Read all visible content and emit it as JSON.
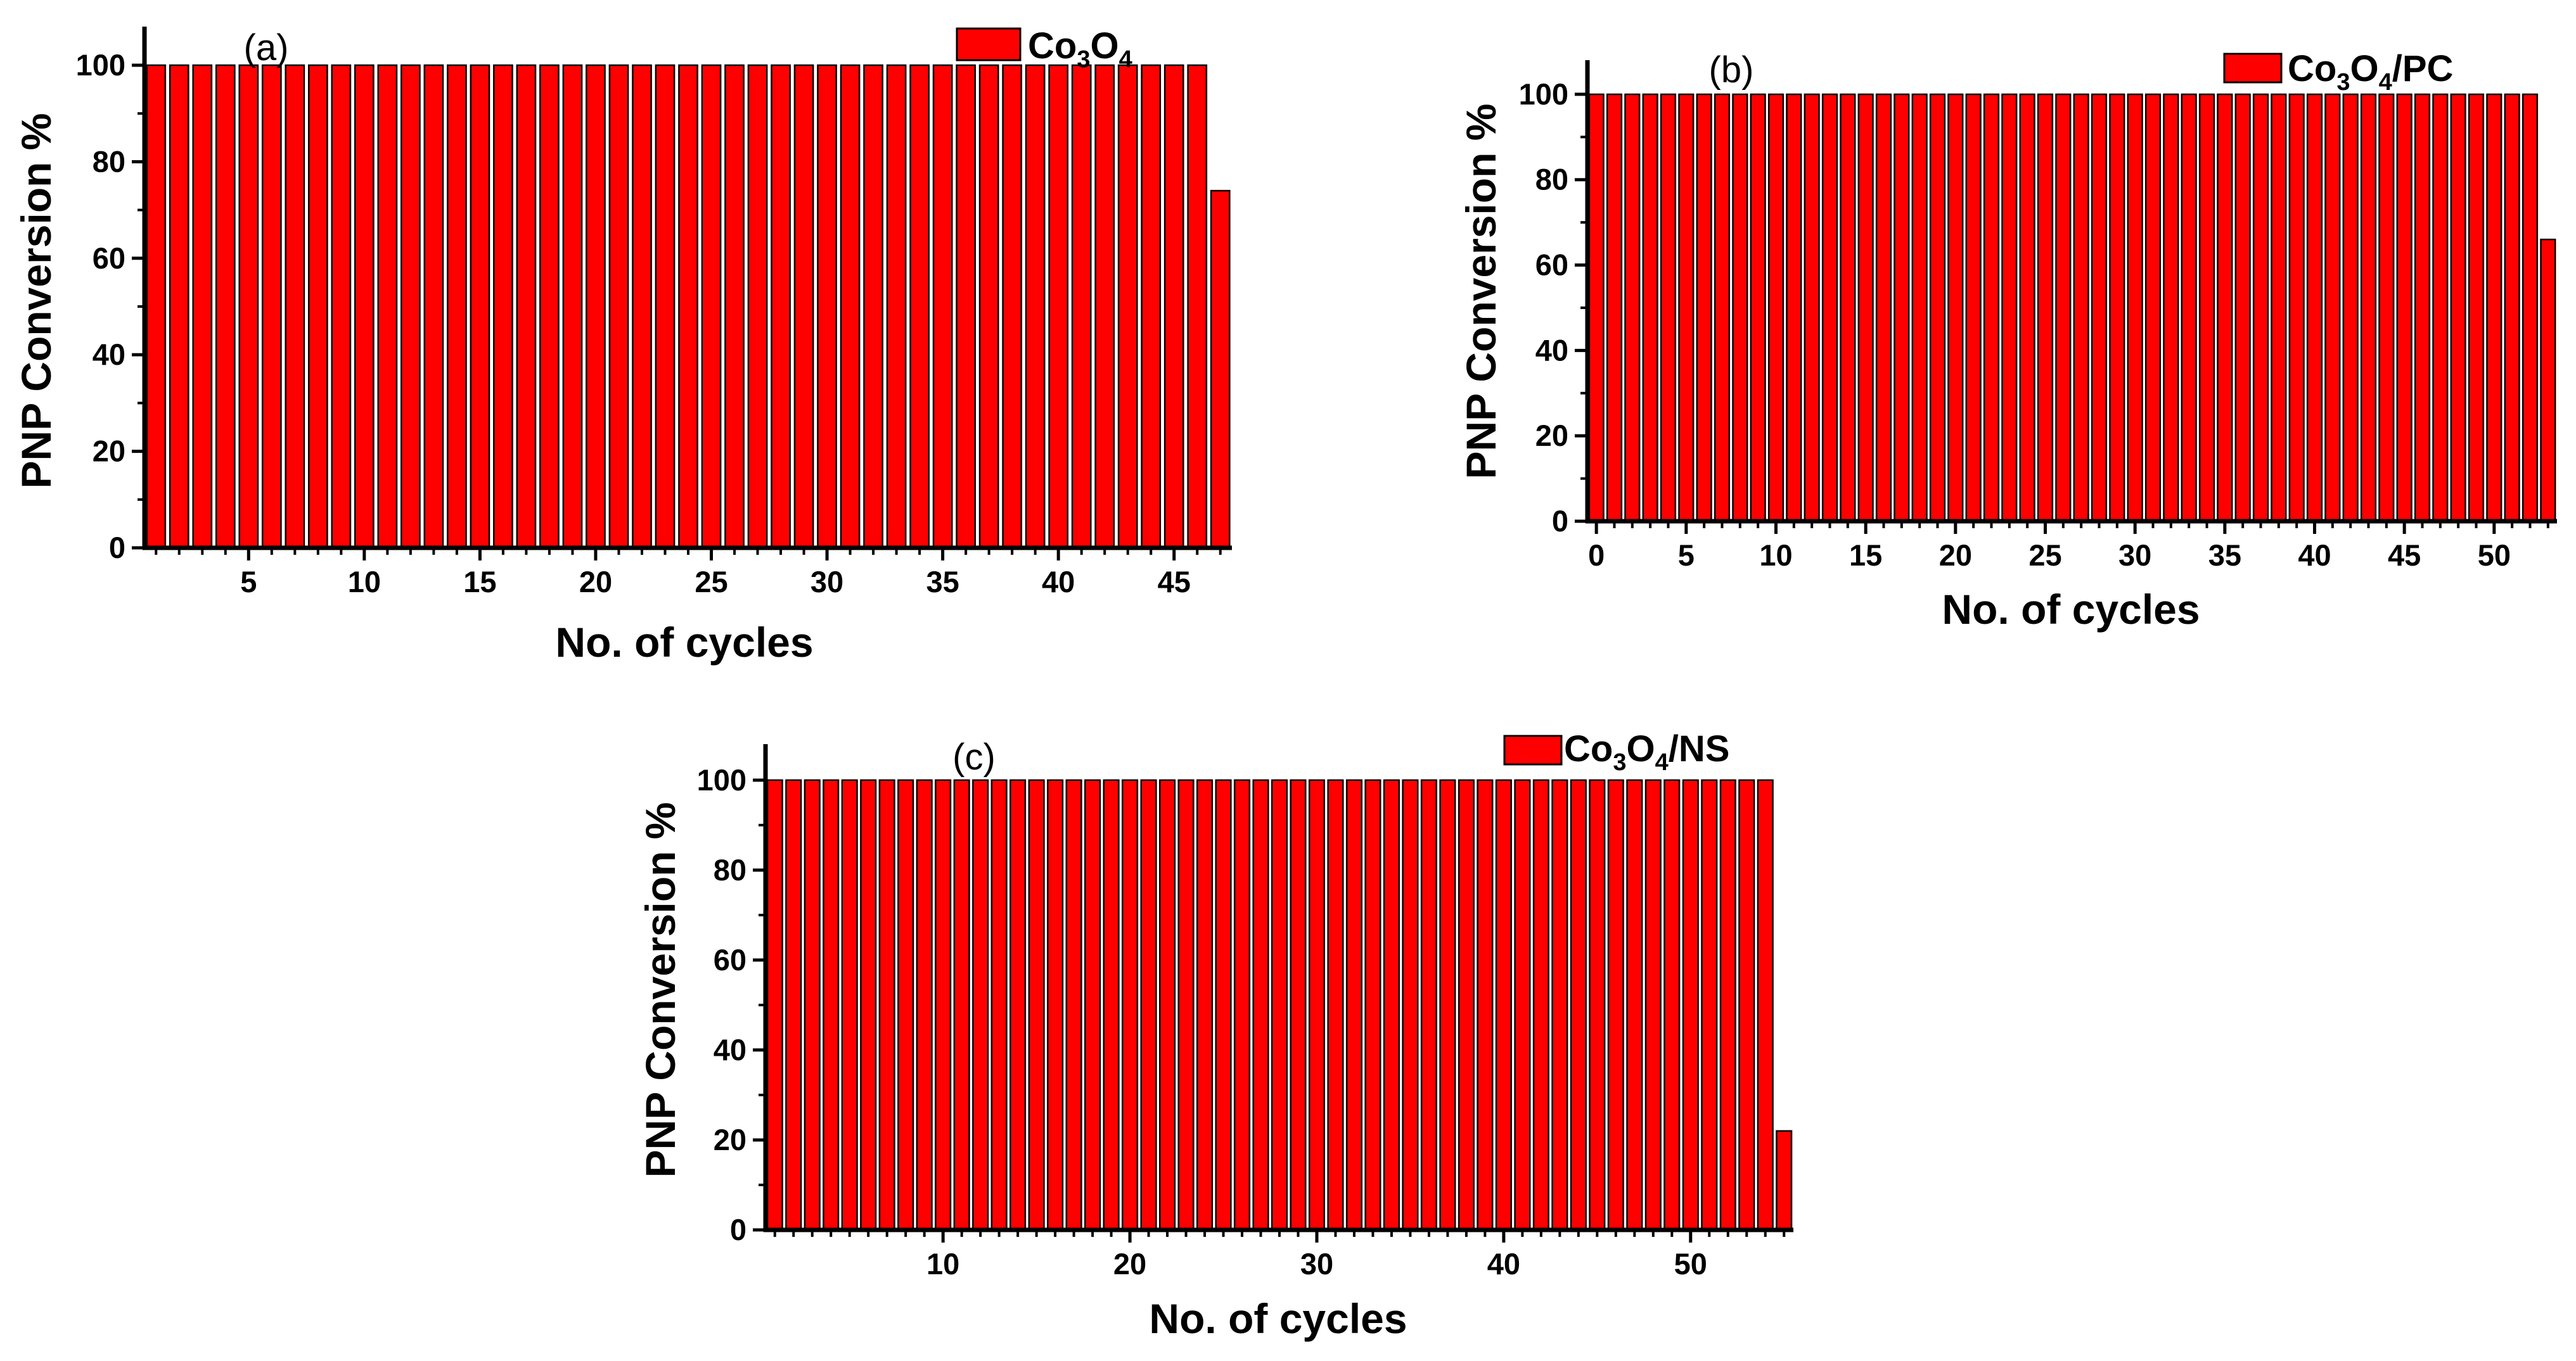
{
  "chart_data": [
    {
      "id": "a",
      "type": "bar",
      "panel_label": "(a)",
      "legend": {
        "base": "Co",
        "sub1": "3",
        "mid": "O",
        "sub2": "4",
        "suffix": ""
      },
      "xlabel": "No. of cycles",
      "ylabel": "PNP Conversion %",
      "xlim": [
        0.5,
        47.5
      ],
      "ylim": [
        0,
        108
      ],
      "xticks": [
        5,
        10,
        15,
        20,
        25,
        30,
        35,
        40,
        45
      ],
      "yticks": [
        0,
        20,
        40,
        60,
        80,
        100
      ],
      "x": [
        1,
        2,
        3,
        4,
        5,
        6,
        7,
        8,
        9,
        10,
        11,
        12,
        13,
        14,
        15,
        16,
        17,
        18,
        19,
        20,
        21,
        22,
        23,
        24,
        25,
        26,
        27,
        28,
        29,
        30,
        31,
        32,
        33,
        34,
        35,
        36,
        37,
        38,
        39,
        40,
        41,
        42,
        43,
        44,
        45,
        46,
        47
      ],
      "values": [
        100,
        100,
        100,
        100,
        100,
        100,
        100,
        100,
        100,
        100,
        100,
        100,
        100,
        100,
        100,
        100,
        100,
        100,
        100,
        100,
        100,
        100,
        100,
        100,
        100,
        100,
        100,
        100,
        100,
        100,
        100,
        100,
        100,
        100,
        100,
        100,
        100,
        100,
        100,
        100,
        100,
        100,
        100,
        100,
        100,
        100,
        74
      ],
      "bar_color": "#ff0000"
    },
    {
      "id": "b",
      "type": "bar",
      "panel_label": "(b)",
      "legend": {
        "base": "Co",
        "sub1": "3",
        "mid": "O",
        "sub2": "4",
        "suffix": "/PC"
      },
      "xlabel": "No. of cycles",
      "ylabel": "PNP Conversion %",
      "xlim": [
        -0.5,
        53.5
      ],
      "ylim": [
        0,
        108
      ],
      "xticks": [
        0,
        5,
        10,
        15,
        20,
        25,
        30,
        35,
        40,
        45,
        50
      ],
      "yticks": [
        0,
        20,
        40,
        60,
        80,
        100
      ],
      "x": [
        0,
        1,
        2,
        3,
        4,
        5,
        6,
        7,
        8,
        9,
        10,
        11,
        12,
        13,
        14,
        15,
        16,
        17,
        18,
        19,
        20,
        21,
        22,
        23,
        24,
        25,
        26,
        27,
        28,
        29,
        30,
        31,
        32,
        33,
        34,
        35,
        36,
        37,
        38,
        39,
        40,
        41,
        42,
        43,
        44,
        45,
        46,
        47,
        48,
        49,
        50,
        51,
        52,
        53
      ],
      "values": [
        100,
        100,
        100,
        100,
        100,
        100,
        100,
        100,
        100,
        100,
        100,
        100,
        100,
        100,
        100,
        100,
        100,
        100,
        100,
        100,
        100,
        100,
        100,
        100,
        100,
        100,
        100,
        100,
        100,
        100,
        100,
        100,
        100,
        100,
        100,
        100,
        100,
        100,
        100,
        100,
        100,
        100,
        100,
        100,
        100,
        100,
        100,
        100,
        100,
        100,
        100,
        100,
        100,
        66
      ],
      "bar_color": "#ff0000"
    },
    {
      "id": "c",
      "type": "bar",
      "panel_label": "(c)",
      "legend": {
        "base": "Co",
        "sub1": "3",
        "mid": "O",
        "sub2": "4",
        "suffix": "/NS"
      },
      "xlabel": "No. of cycles",
      "ylabel": "PNP Conversion %",
      "xlim": [
        0.5,
        55.5
      ],
      "ylim": [
        0,
        108
      ],
      "xticks": [
        10,
        20,
        30,
        40,
        50
      ],
      "yticks": [
        0,
        20,
        40,
        60,
        80,
        100
      ],
      "x": [
        1,
        2,
        3,
        4,
        5,
        6,
        7,
        8,
        9,
        10,
        11,
        12,
        13,
        14,
        15,
        16,
        17,
        18,
        19,
        20,
        21,
        22,
        23,
        24,
        25,
        26,
        27,
        28,
        29,
        30,
        31,
        32,
        33,
        34,
        35,
        36,
        37,
        38,
        39,
        40,
        41,
        42,
        43,
        44,
        45,
        46,
        47,
        48,
        49,
        50,
        51,
        52,
        53,
        54,
        55
      ],
      "values": [
        100,
        100,
        100,
        100,
        100,
        100,
        100,
        100,
        100,
        100,
        100,
        100,
        100,
        100,
        100,
        100,
        100,
        100,
        100,
        100,
        100,
        100,
        100,
        100,
        100,
        100,
        100,
        100,
        100,
        100,
        100,
        100,
        100,
        100,
        100,
        100,
        100,
        100,
        100,
        100,
        100,
        100,
        100,
        100,
        100,
        100,
        100,
        100,
        100,
        100,
        100,
        100,
        100,
        100,
        22
      ],
      "bar_color": "#ff0000"
    }
  ]
}
